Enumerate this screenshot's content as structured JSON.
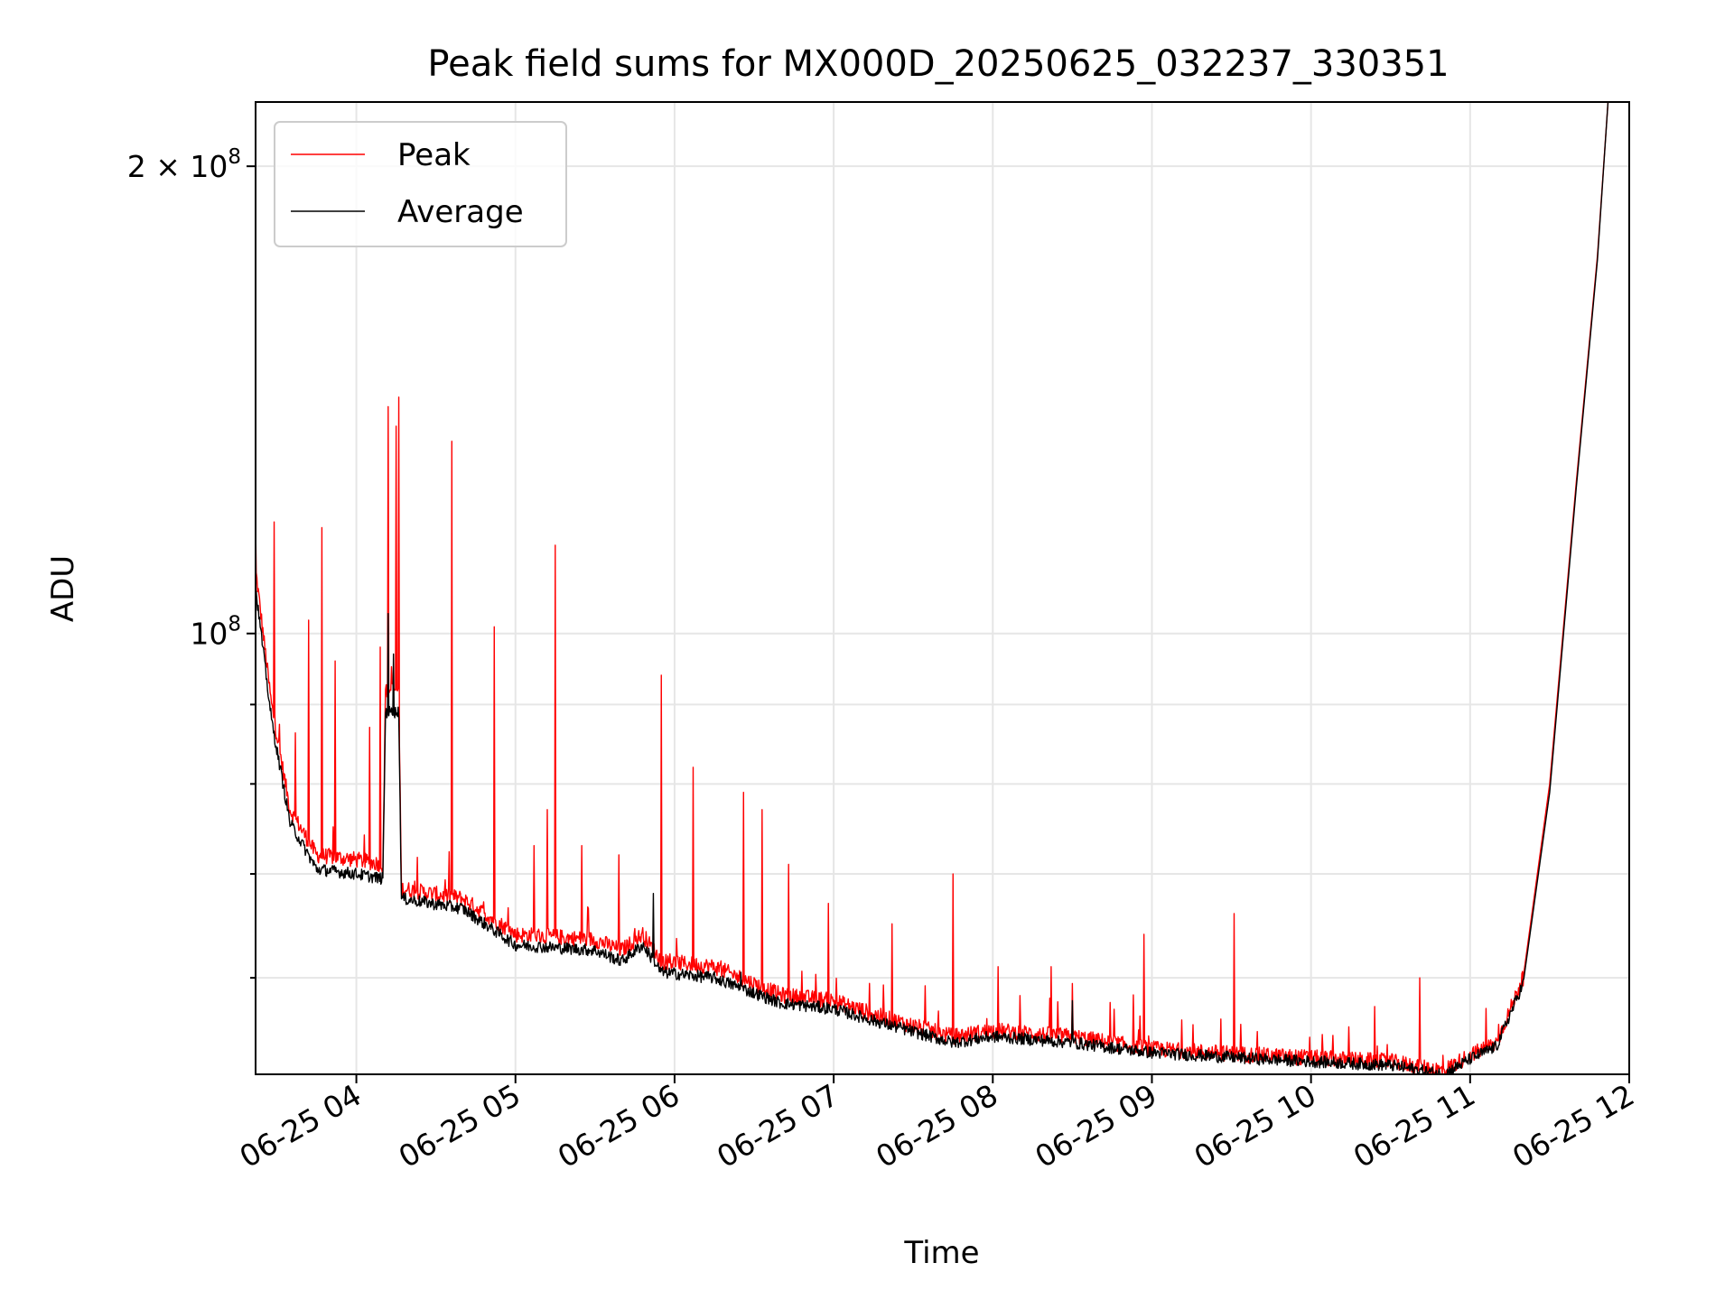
{
  "chart_data": {
    "type": "line",
    "title": "Peak field sums for MX000D_20250625_032237_330351",
    "xlabel": "Time",
    "ylabel": "ADU",
    "x_scale": "time",
    "y_scale": "log",
    "x_range": [
      "06-25 03:22",
      "06-25 12:00"
    ],
    "ylim": [
      52000000,
      220000000
    ],
    "x_tick_labels": [
      "06-25 04",
      "06-25 05",
      "06-25 06",
      "06-25 07",
      "06-25 08",
      "06-25 09",
      "06-25 10",
      "06-25 11",
      "06-25 12"
    ],
    "y_tick_labels": [
      {
        "value": 100000000,
        "base": "10",
        "exp": "8"
      },
      {
        "value": 200000000,
        "base": "2 × 10",
        "exp": "8"
      }
    ],
    "y_minor_ticks": [
      60000000,
      70000000,
      80000000,
      90000000
    ],
    "grid": true,
    "legend_position": "upper left",
    "series": [
      {
        "name": "Peak",
        "color": "#ff0000",
        "baseline": [
          [
            "06-25 03:22",
            110000000
          ],
          [
            "06-25 03:28",
            90000000
          ],
          [
            "06-25 03:35",
            77000000
          ],
          [
            "06-25 03:45",
            72000000
          ],
          [
            "06-25 04:00",
            71500000
          ],
          [
            "06-25 04:10",
            71000000
          ],
          [
            "06-25 04:11",
            92000000
          ],
          [
            "06-25 04:16",
            92000000
          ],
          [
            "06-25 04:17",
            68500000
          ],
          [
            "06-25 04:40",
            67500000
          ],
          [
            "06-25 05:00",
            64000000
          ],
          [
            "06-25 05:30",
            63500000
          ],
          [
            "06-25 05:40",
            62500000
          ],
          [
            "06-25 05:48",
            64000000
          ],
          [
            "06-25 05:55",
            61500000
          ],
          [
            "06-25 06:15",
            61000000
          ],
          [
            "06-25 06:40",
            58500000
          ],
          [
            "06-25 07:00",
            58000000
          ],
          [
            "06-25 07:20",
            56500000
          ],
          [
            "06-25 07:45",
            55000000
          ],
          [
            "06-25 08:00",
            55500000
          ],
          [
            "06-25 08:30",
            55000000
          ],
          [
            "06-25 09:00",
            54000000
          ],
          [
            "06-25 09:40",
            53500000
          ],
          [
            "06-25 10:30",
            53000000
          ],
          [
            "06-25 10:50",
            52300000
          ],
          [
            "06-25 11:00",
            53500000
          ],
          [
            "06-25 11:10",
            54500000
          ],
          [
            "06-25 11:20",
            60000000
          ],
          [
            "06-25 11:30",
            80000000
          ],
          [
            "06-25 11:40",
            125000000
          ],
          [
            "06-25 11:48",
            175000000
          ],
          [
            "06-25 11:52",
            220000000
          ]
        ],
        "spikes": [
          [
            "06-25 03:22",
            118000000
          ],
          [
            "06-25 03:29",
            118000000
          ],
          [
            "06-25 03:37",
            85000000
          ],
          [
            "06-25 03:42",
            102000000
          ],
          [
            "06-25 03:47",
            117000000
          ],
          [
            "06-25 03:52",
            96000000
          ],
          [
            "06-25 04:05",
            87000000
          ],
          [
            "06-25 04:09",
            98000000
          ],
          [
            "06-25 04:12",
            140000000
          ],
          [
            "06-25 04:15",
            136000000
          ],
          [
            "06-25 04:16",
            142000000
          ],
          [
            "06-25 04:36",
            133000000
          ],
          [
            "06-25 04:52",
            101000000
          ],
          [
            "06-25 05:07",
            73000000
          ],
          [
            "06-25 05:12",
            77000000
          ],
          [
            "06-25 05:15",
            114000000
          ],
          [
            "06-25 05:25",
            73000000
          ],
          [
            "06-25 05:39",
            72000000
          ],
          [
            "06-25 05:55",
            94000000
          ],
          [
            "06-25 06:07",
            82000000
          ],
          [
            "06-25 06:26",
            79000000
          ],
          [
            "06-25 06:33",
            77000000
          ],
          [
            "06-25 06:43",
            71000000
          ],
          [
            "06-25 06:58",
            67000000
          ],
          [
            "06-25 07:22",
            65000000
          ],
          [
            "06-25 07:45",
            70000000
          ],
          [
            "06-25 08:02",
            61000000
          ],
          [
            "06-25 08:22",
            61000000
          ],
          [
            "06-25 08:30",
            59500000
          ],
          [
            "06-25 08:53",
            58500000
          ],
          [
            "06-25 08:57",
            64000000
          ],
          [
            "06-25 09:31",
            66000000
          ],
          [
            "06-25 10:24",
            57500000
          ],
          [
            "06-25 10:41",
            60000000
          ]
        ]
      },
      {
        "name": "Average",
        "color": "#000000",
        "baseline": [
          [
            "06-25 03:22",
            107000000
          ],
          [
            "06-25 03:28",
            88000000
          ],
          [
            "06-25 03:35",
            75500000
          ],
          [
            "06-25 03:45",
            70500000
          ],
          [
            "06-25 04:00",
            70000000
          ],
          [
            "06-25 04:10",
            69500000
          ],
          [
            "06-25 04:11",
            89000000
          ],
          [
            "06-25 04:16",
            89000000
          ],
          [
            "06-25 04:17",
            67500000
          ],
          [
            "06-25 04:40",
            66500000
          ],
          [
            "06-25 05:00",
            63000000
          ],
          [
            "06-25 05:30",
            62500000
          ],
          [
            "06-25 05:40",
            61500000
          ],
          [
            "06-25 05:48",
            63000000
          ],
          [
            "06-25 05:55",
            60500000
          ],
          [
            "06-25 06:15",
            60000000
          ],
          [
            "06-25 06:40",
            57800000
          ],
          [
            "06-25 07:00",
            57300000
          ],
          [
            "06-25 07:20",
            56000000
          ],
          [
            "06-25 07:45",
            54500000
          ],
          [
            "06-25 08:00",
            55000000
          ],
          [
            "06-25 08:30",
            54500000
          ],
          [
            "06-25 09:00",
            53700000
          ],
          [
            "06-25 09:40",
            53200000
          ],
          [
            "06-25 10:30",
            52700000
          ],
          [
            "06-25 10:50",
            52000000
          ],
          [
            "06-25 11:00",
            53200000
          ],
          [
            "06-25 11:10",
            54200000
          ],
          [
            "06-25 11:20",
            59500000
          ],
          [
            "06-25 11:30",
            79000000
          ],
          [
            "06-25 11:40",
            124000000
          ],
          [
            "06-25 11:48",
            174000000
          ],
          [
            "06-25 11:52",
            220000000
          ]
        ],
        "spikes": [
          [
            "06-25 04:12",
            103000000
          ],
          [
            "06-25 04:14",
            97000000
          ],
          [
            "06-25 05:52",
            68000000
          ],
          [
            "06-25 06:25",
            60500000
          ],
          [
            "06-25 08:30",
            58000000
          ]
        ]
      }
    ]
  }
}
